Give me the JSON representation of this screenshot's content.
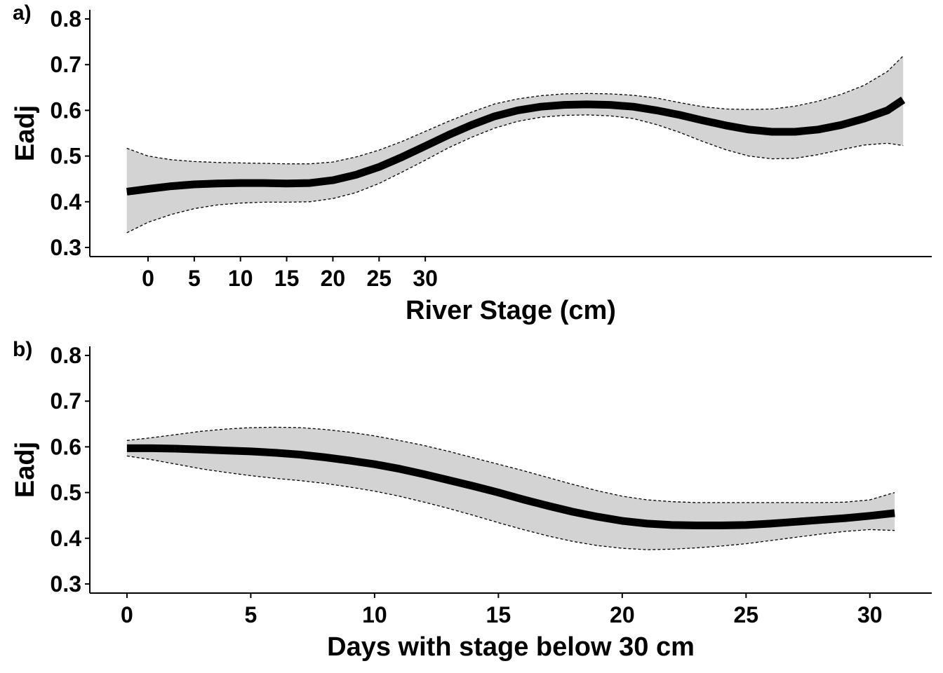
{
  "chart_data": [
    {
      "type": "line",
      "panel_label": "a)",
      "xlabel": "River Stage (cm)",
      "ylabel": "Eadj",
      "ylim": [
        0.28,
        0.82
      ],
      "yticks": [
        0.3,
        0.4,
        0.5,
        0.6,
        0.7,
        0.8
      ],
      "ytick_labels": [
        "0.3",
        "0.4",
        "0.5",
        "0.6",
        "0.7",
        "0.8"
      ],
      "xlim": [
        -6.3,
        84.8
      ],
      "xticks": [
        0,
        5,
        10,
        15,
        20,
        25,
        30
      ],
      "xtick_labels": [
        "0",
        "5",
        "10",
        "15",
        "20",
        "25",
        "30"
      ],
      "grid": false,
      "legend": "none",
      "series": [
        {
          "x": [
            -2.3,
            0,
            2.5,
            5,
            7.5,
            10,
            12.5,
            15,
            17.5,
            20,
            22.5,
            25,
            27.5,
            30,
            32.5,
            35,
            37.5,
            40,
            42.5,
            45,
            47.5,
            50,
            52.5,
            55,
            57.5,
            60,
            62.5,
            65,
            67.5,
            70,
            72.5,
            75,
            77.5,
            80,
            81.7
          ],
          "y": [
            0.422,
            0.428,
            0.434,
            0.438,
            0.44,
            0.441,
            0.441,
            0.44,
            0.441,
            0.447,
            0.459,
            0.476,
            0.498,
            0.522,
            0.546,
            0.568,
            0.587,
            0.6,
            0.608,
            0.612,
            0.613,
            0.612,
            0.608,
            0.6,
            0.59,
            0.578,
            0.567,
            0.558,
            0.553,
            0.553,
            0.558,
            0.568,
            0.582,
            0.6,
            0.623
          ],
          "lower": [
            0.332,
            0.355,
            0.372,
            0.385,
            0.393,
            0.397,
            0.399,
            0.399,
            0.4,
            0.407,
            0.42,
            0.44,
            0.465,
            0.491,
            0.518,
            0.541,
            0.561,
            0.576,
            0.585,
            0.589,
            0.59,
            0.588,
            0.582,
            0.569,
            0.552,
            0.532,
            0.514,
            0.5,
            0.494,
            0.495,
            0.503,
            0.514,
            0.524,
            0.528,
            0.523
          ],
          "upper": [
            0.517,
            0.5,
            0.492,
            0.488,
            0.486,
            0.485,
            0.484,
            0.483,
            0.483,
            0.487,
            0.498,
            0.513,
            0.532,
            0.554,
            0.576,
            0.596,
            0.614,
            0.625,
            0.632,
            0.636,
            0.637,
            0.636,
            0.633,
            0.627,
            0.617,
            0.608,
            0.603,
            0.602,
            0.603,
            0.609,
            0.62,
            0.635,
            0.655,
            0.685,
            0.719
          ]
        }
      ]
    },
    {
      "type": "line",
      "panel_label": "b)",
      "xlabel": "Days with stage below 30 cm",
      "ylabel": "Eadj",
      "ylim": [
        0.28,
        0.82
      ],
      "yticks": [
        0.3,
        0.4,
        0.5,
        0.6,
        0.7,
        0.8
      ],
      "ytick_labels": [
        "0.3",
        "0.4",
        "0.5",
        "0.6",
        "0.7",
        "0.8"
      ],
      "xlim": [
        -1.5,
        32.5
      ],
      "xticks": [
        0,
        5,
        10,
        15,
        20,
        25,
        30
      ],
      "xtick_labels": [
        "0",
        "5",
        "10",
        "15",
        "20",
        "25",
        "30"
      ],
      "grid": false,
      "legend": "none",
      "series": [
        {
          "x": [
            0,
            1,
            2,
            3,
            4,
            5,
            6,
            7,
            8,
            9,
            10,
            11,
            12,
            13,
            14,
            15,
            16,
            17,
            18,
            19,
            20,
            21,
            22,
            23,
            24,
            25,
            26,
            27,
            28,
            29,
            30,
            31
          ],
          "y": [
            0.597,
            0.597,
            0.596,
            0.594,
            0.592,
            0.59,
            0.587,
            0.583,
            0.577,
            0.57,
            0.562,
            0.552,
            0.54,
            0.527,
            0.514,
            0.5,
            0.485,
            0.471,
            0.458,
            0.447,
            0.438,
            0.432,
            0.429,
            0.428,
            0.428,
            0.429,
            0.432,
            0.436,
            0.44,
            0.444,
            0.449,
            0.455
          ],
          "lower": [
            0.58,
            0.572,
            0.562,
            0.552,
            0.544,
            0.537,
            0.531,
            0.526,
            0.52,
            0.512,
            0.503,
            0.492,
            0.479,
            0.465,
            0.45,
            0.434,
            0.419,
            0.405,
            0.393,
            0.384,
            0.378,
            0.375,
            0.376,
            0.379,
            0.383,
            0.388,
            0.395,
            0.402,
            0.409,
            0.415,
            0.419,
            0.417
          ],
          "upper": [
            0.614,
            0.62,
            0.627,
            0.634,
            0.639,
            0.642,
            0.643,
            0.642,
            0.638,
            0.632,
            0.624,
            0.614,
            0.603,
            0.59,
            0.576,
            0.562,
            0.548,
            0.533,
            0.518,
            0.504,
            0.492,
            0.484,
            0.48,
            0.478,
            0.478,
            0.478,
            0.478,
            0.478,
            0.478,
            0.479,
            0.484,
            0.5
          ]
        }
      ]
    }
  ],
  "colors": {
    "line": "#000000",
    "band_fill": "#d3d3d3",
    "band_border": "#000000",
    "axis": "#000000"
  }
}
